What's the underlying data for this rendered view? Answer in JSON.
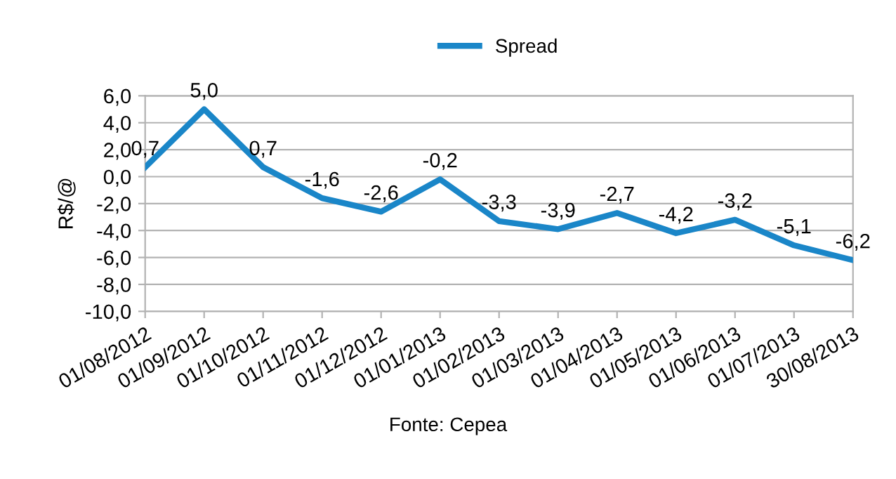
{
  "chart_data": {
    "type": "line",
    "ylabel": "R$/@",
    "categories": [
      "01/08/2012",
      "01/09/2012",
      "01/10/2012",
      "01/11/2012",
      "01/12/2012",
      "01/01/2013",
      "01/02/2013",
      "01/03/2013",
      "01/04/2013",
      "01/05/2013",
      "01/06/2013",
      "01/07/2013",
      "30/08/2013"
    ],
    "series": [
      {
        "name": "Spread",
        "color": "#1a86c8",
        "values": [
          0.7,
          5.0,
          0.7,
          -1.6,
          -2.6,
          -0.2,
          -3.3,
          -3.9,
          -2.7,
          -4.2,
          -3.2,
          -5.1,
          -6.2
        ],
        "value_labels": [
          "0,7",
          "5,0",
          "0,7",
          "-1,6",
          "-2,6",
          "-0,2",
          "-3,3",
          "-3,9",
          "-2,7",
          "-4,2",
          "-3,2",
          "-5,1",
          "-6,2"
        ]
      }
    ],
    "ylim": [
      -10,
      6
    ],
    "yticks": [
      {
        "value": -10,
        "label": "-10,0"
      },
      {
        "value": -8,
        "label": "-8,0"
      },
      {
        "value": -6,
        "label": "-6,0"
      },
      {
        "value": -4,
        "label": "-4,0"
      },
      {
        "value": -2,
        "label": "-2,0"
      },
      {
        "value": 0,
        "label": "0,0"
      },
      {
        "value": 2,
        "label": "2,0"
      },
      {
        "value": 4,
        "label": "4,0"
      },
      {
        "value": 6,
        "label": "6,0"
      }
    ],
    "grid": "y",
    "legend": "top",
    "marker": "none",
    "line_style": "solid",
    "annotations": [
      "Fonte: Cepea"
    ]
  }
}
